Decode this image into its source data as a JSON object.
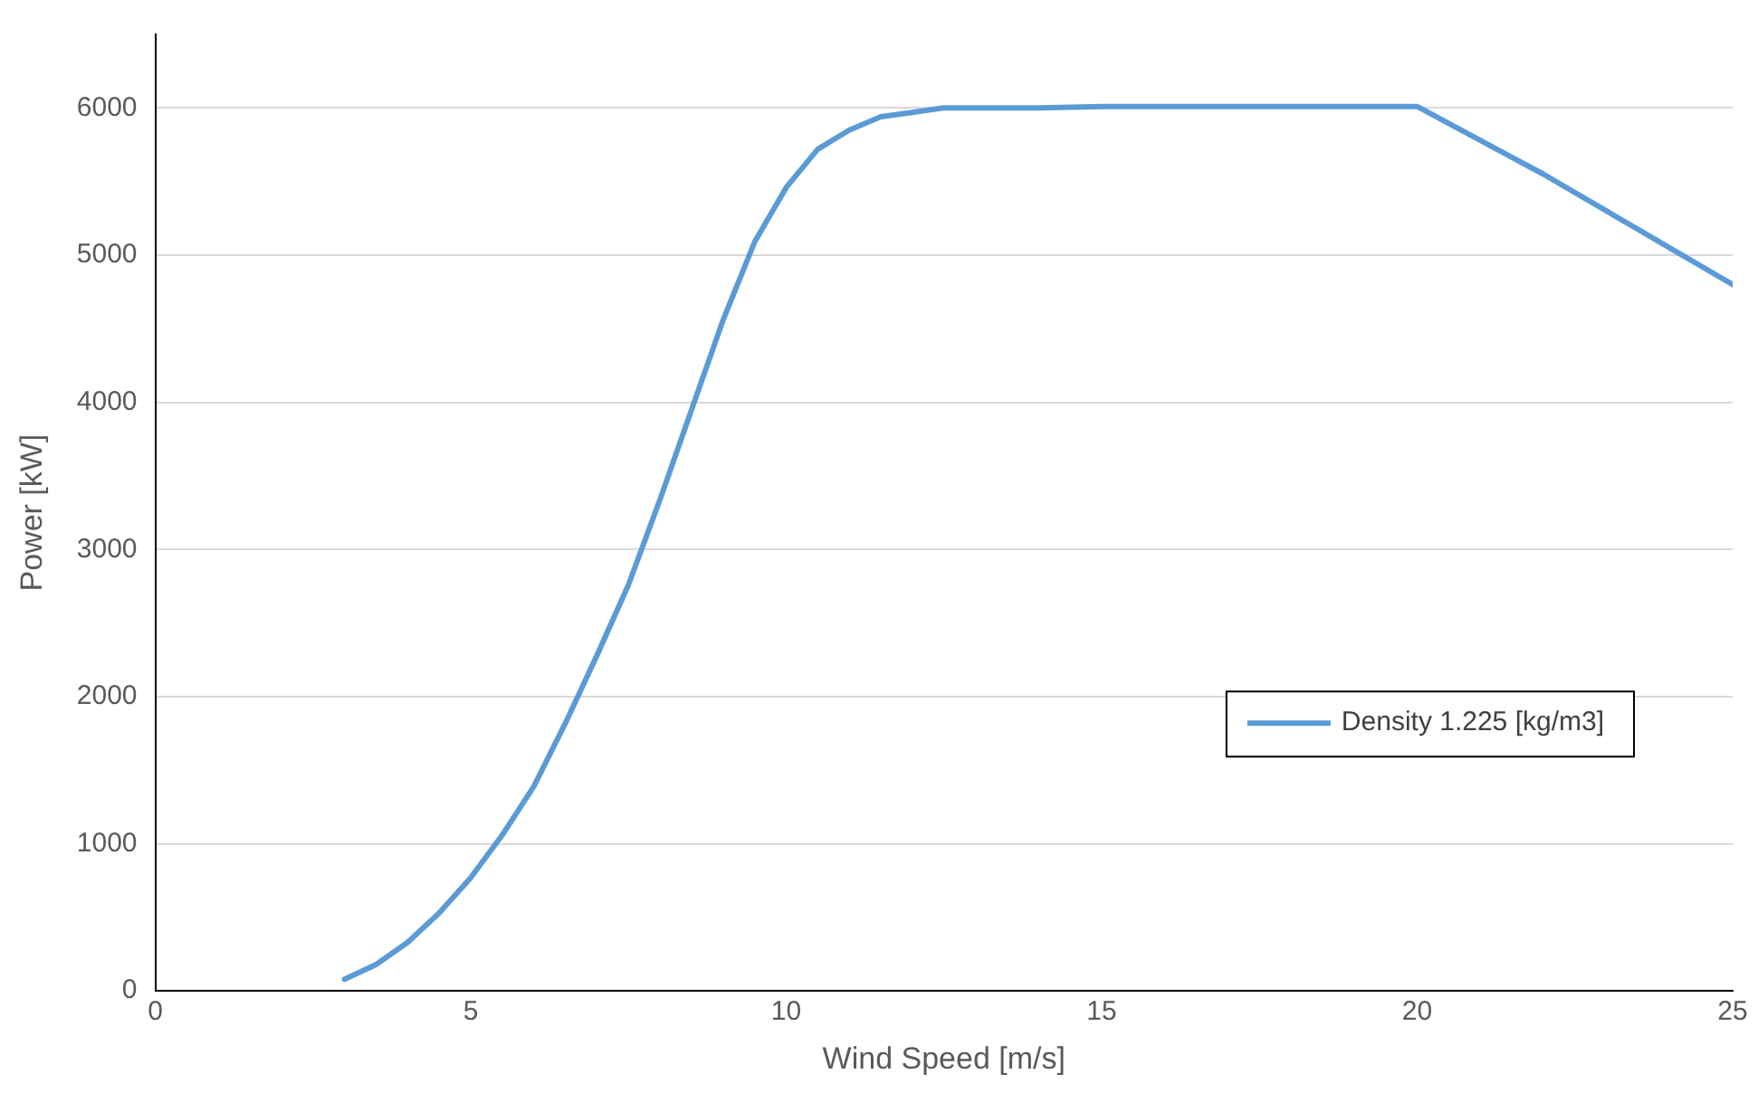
{
  "chart_data": {
    "type": "line",
    "xlabel": "Wind Speed [m/s]",
    "ylabel": "Power [kW]",
    "x": [
      3,
      3.5,
      4,
      4.5,
      5,
      5.5,
      6,
      6.5,
      7,
      7.5,
      8,
      8.5,
      9,
      9.5,
      10,
      10.5,
      11,
      11.5,
      12,
      12.5,
      13,
      14,
      15,
      16,
      17,
      18,
      19,
      20,
      21,
      22,
      23,
      24,
      25
    ],
    "series": [
      {
        "name": "Density 1.225 [kg/m3]",
        "color": "#5b9bd5",
        "values": [
          80,
          180,
          330,
          530,
          770,
          1060,
          1390,
          1820,
          2280,
          2760,
          3340,
          3950,
          4560,
          5090,
          5460,
          5720,
          5850,
          5940,
          5970,
          6000,
          6000,
          6000,
          6010,
          6010,
          6010,
          6010,
          6010,
          6010,
          5780,
          5550,
          5300,
          5050,
          4800
        ]
      }
    ],
    "xlim": [
      0,
      25
    ],
    "xticks": [
      0,
      5,
      10,
      15,
      20,
      25
    ],
    "ylim": [
      0,
      6500
    ],
    "yticks": [
      0,
      1000,
      2000,
      3000,
      4000,
      5000,
      6000
    ],
    "grid": "y",
    "legend": "right",
    "marker": "none",
    "line_style": "solid"
  }
}
